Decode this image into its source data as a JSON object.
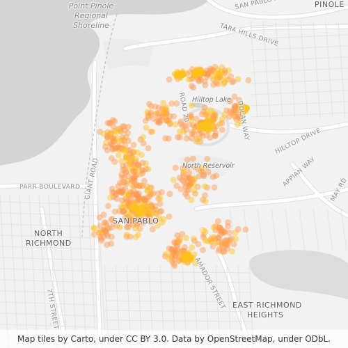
{
  "labels": {
    "water": [
      "Point Pinole",
      "Regional",
      "Shoreline"
    ],
    "places": [
      "PINOLE",
      "SAN PABLO",
      "NORTH",
      "RICHMOND",
      "EAST RICHMOND",
      "HEIGHTS"
    ],
    "streets": [
      "SAN PABLO AVENUE",
      "TARA HILLS DRIVE",
      "PARR BOULEVARD",
      "GIANT ROAD",
      "HILLTOP DRIVE",
      "APPIAN WAY",
      "AMADOR STREET",
      "7TH STREET",
      "MAY RD",
      "DOLAN WAY",
      "ROAD 20"
    ],
    "features": [
      "Hilltop Lake",
      "North Reservoir"
    ]
  },
  "attribution": "Map tiles by Carto, under CC BY 3.0. Data by OpenStreetMap, under ODbL.",
  "colors": {
    "water": "#d4d4d4",
    "land": "#f2f2f2",
    "road": "#ffffff",
    "road_casing": "#dedede",
    "marker": "#ff9a4d",
    "marker_dense": "#ffc21a"
  }
}
